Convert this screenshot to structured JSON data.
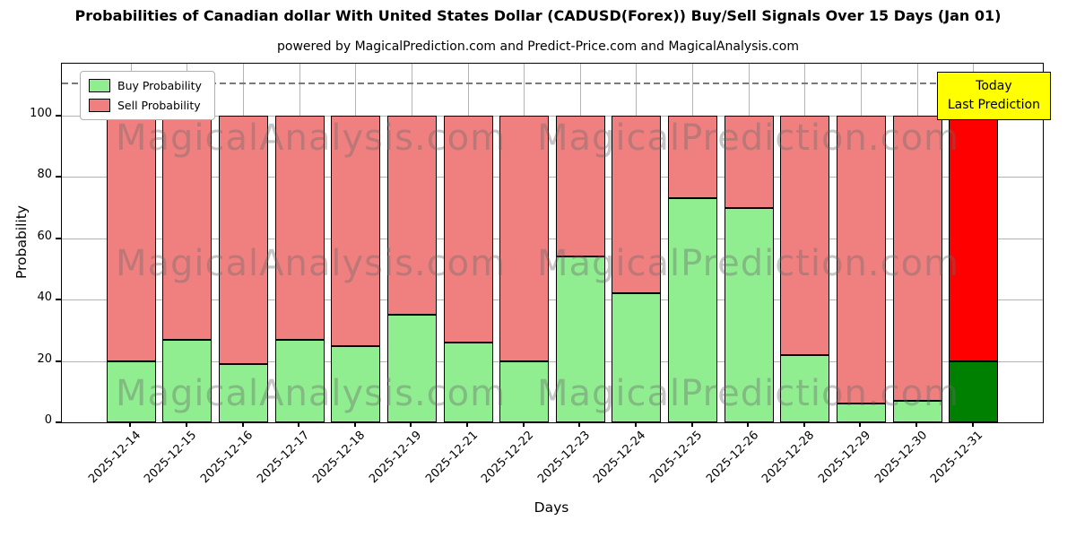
{
  "chart_data": {
    "type": "bar",
    "stacked": true,
    "title": "Probabilities of Canadian dollar With United States Dollar (CADUSD(Forex)) Buy/Sell Signals Over 15 Days (Jan 01)",
    "subtitle": "powered by MagicalPrediction.com and Predict-Price.com and MagicalAnalysis.com",
    "xlabel": "Days",
    "ylabel": "Probability",
    "categories": [
      "2025-12-14",
      "2025-12-15",
      "2025-12-16",
      "2025-12-17",
      "2025-12-18",
      "2025-12-19",
      "2025-12-21",
      "2025-12-22",
      "2025-12-23",
      "2025-12-24",
      "2025-12-25",
      "2025-12-26",
      "2025-12-28",
      "2025-12-29",
      "2025-12-30",
      "2025-12-31"
    ],
    "series": [
      {
        "name": "Buy Probability",
        "color": "#90ee90",
        "values": [
          20,
          27,
          19,
          27,
          25,
          35,
          26,
          20,
          54,
          42,
          73,
          70,
          22,
          6,
          7,
          20
        ]
      },
      {
        "name": "Sell Probability",
        "color": "#f08080",
        "values": [
          80,
          73,
          81,
          73,
          75,
          65,
          74,
          80,
          46,
          58,
          27,
          30,
          78,
          94,
          93,
          80
        ]
      }
    ],
    "last_bar_colors": {
      "buy": "#008000",
      "sell": "#ff0000"
    },
    "yticks": [
      0,
      20,
      40,
      60,
      80,
      100
    ],
    "ylim": [
      0,
      117
    ],
    "dashed_line_y": 111,
    "grid": true,
    "legend_position": "upper left",
    "bar_edge_color": "#000000",
    "annotation": {
      "line1": "Today",
      "line2": "Last Prediction",
      "bg_color": "#ffff00"
    },
    "watermarks": [
      "MagicalAnalysis.com",
      "MagicalPrediction.com"
    ]
  }
}
